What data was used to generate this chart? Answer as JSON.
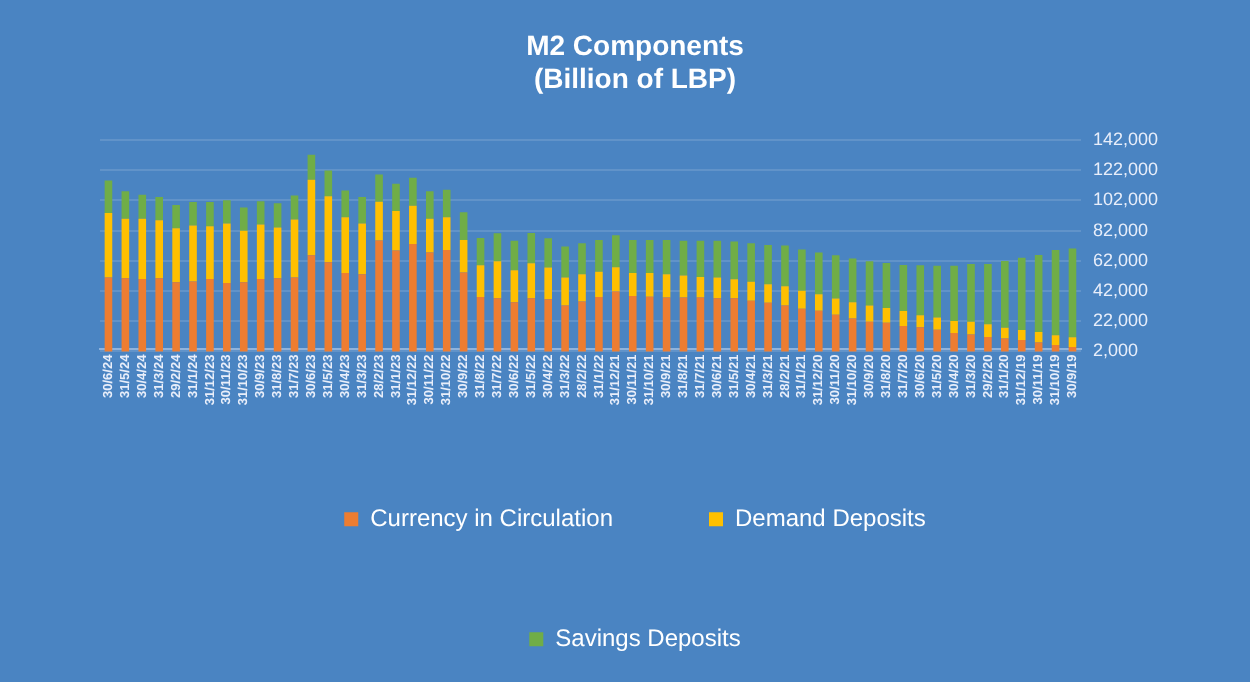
{
  "chart_data": {
    "type": "bar",
    "title": "M2 Components\n(Billion of LBP)",
    "stacked": true,
    "grid": "y",
    "legend": "bottom",
    "categories": [
      "30/6/24",
      "31/5/24",
      "30/4/24",
      "31/3/24",
      "29/2/24",
      "31/1/24",
      "31/12/23",
      "30/11/23",
      "31/10/23",
      "30/9/23",
      "31/8/23",
      "31/7/23",
      "30/6/23",
      "31/5/23",
      "30/4/23",
      "31/3/23",
      "28/2/23",
      "31/1/23",
      "31/12/22",
      "30/11/22",
      "31/10/22",
      "30/9/22",
      "31/8/22",
      "31/7/22",
      "30/6/22",
      "31/5/22",
      "30/4/22",
      "31/3/22",
      "28/2/22",
      "31/1/22",
      "31/12/21",
      "30/11/21",
      "31/10/21",
      "30/9/21",
      "31/8/21",
      "31/7/21",
      "30/6/21",
      "31/5/21",
      "30/4/21",
      "31/3/21",
      "28/2/21",
      "31/1/21",
      "31/12/20",
      "30/11/20",
      "31/10/20",
      "30/9/20",
      "31/8/20",
      "31/7/20",
      "30/6/20",
      "31/5/20",
      "30/4/20",
      "31/3/20",
      "29/2/20",
      "31/1/20",
      "31/12/19",
      "30/11/19",
      "31/10/19",
      "30/9/19"
    ],
    "ylim": [
      2000,
      142000
    ],
    "yticks": [
      {
        "value": 2000,
        "label": "2,000"
      },
      {
        "value": 22000,
        "label": "22,000"
      },
      {
        "value": 42000,
        "label": "42,000"
      },
      {
        "value": 62000,
        "label": "62,000"
      },
      {
        "value": 82000,
        "label": "82,000"
      },
      {
        "value": 102000,
        "label": "102,000"
      },
      {
        "value": 122000,
        "label": "122,000"
      },
      {
        "value": 142000,
        "label": "142,000"
      }
    ],
    "series": [
      {
        "name": "Currency in Circulation",
        "color": "#ed7d31",
        "values": [
          51000,
          50500,
          49900,
          50500,
          47800,
          48300,
          49900,
          47300,
          47800,
          49900,
          50500,
          51000,
          65600,
          61100,
          53900,
          53100,
          75500,
          68800,
          73100,
          67500,
          69100,
          54200,
          38000,
          37200,
          34500,
          37200,
          36600,
          32400,
          35000,
          38000,
          41700,
          38700,
          38200,
          37700,
          37700,
          37700,
          37200,
          37200,
          35600,
          34200,
          32400,
          30200,
          28900,
          26200,
          23800,
          21700,
          20900,
          18800,
          18000,
          16400,
          14200,
          13200,
          11600,
          10500,
          9500,
          7900,
          6300,
          4900
        ]
      },
      {
        "name": "Demand Deposits",
        "color": "#ffc000",
        "values": [
          42600,
          39400,
          39900,
          38300,
          35700,
          37000,
          34900,
          39400,
          34100,
          36200,
          33600,
          38300,
          50100,
          43700,
          37000,
          33600,
          25600,
          26100,
          25300,
          22400,
          21800,
          21600,
          21000,
          24500,
          21300,
          23200,
          21000,
          18600,
          18100,
          16800,
          16000,
          15200,
          15700,
          15400,
          14600,
          13600,
          13800,
          12500,
          12500,
          12200,
          12800,
          12000,
          10900,
          10900,
          10700,
          10700,
          9900,
          9900,
          8000,
          8000,
          8000,
          8500,
          8300,
          7200,
          6700,
          6900,
          6400,
          6400
        ]
      },
      {
        "name": "Savings Deposits",
        "color": "#70ad47",
        "values": [
          21600,
          18100,
          16000,
          15400,
          15400,
          15700,
          16200,
          15400,
          15400,
          15400,
          16000,
          16000,
          16500,
          17000,
          17600,
          17600,
          18100,
          18100,
          18600,
          18100,
          18100,
          18400,
          18100,
          18600,
          19400,
          20000,
          19400,
          20500,
          20500,
          21000,
          21300,
          21800,
          21800,
          22600,
          22900,
          24000,
          24200,
          25000,
          25600,
          26100,
          26900,
          27200,
          27700,
          28500,
          29000,
          29300,
          29800,
          30600,
          33000,
          34400,
          36500,
          38100,
          39900,
          44200,
          47900,
          51100,
          56500,
          58900
        ]
      }
    ]
  }
}
